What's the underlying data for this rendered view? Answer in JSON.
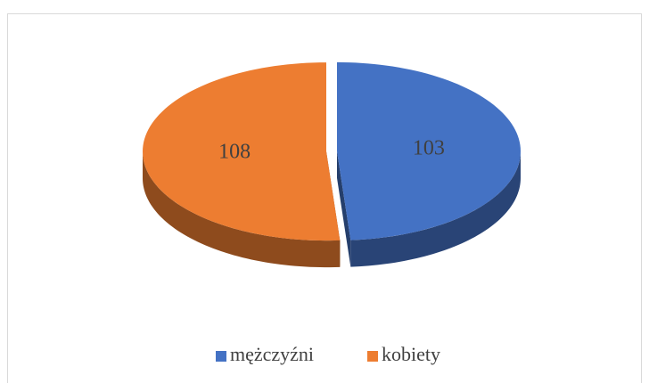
{
  "chart_data": {
    "type": "pie",
    "categories": [
      "mężczyźni",
      "kobiety"
    ],
    "values": [
      103,
      108
    ],
    "colors": [
      "#4472c4",
      "#ed7d31"
    ],
    "legend": "bottom"
  }
}
